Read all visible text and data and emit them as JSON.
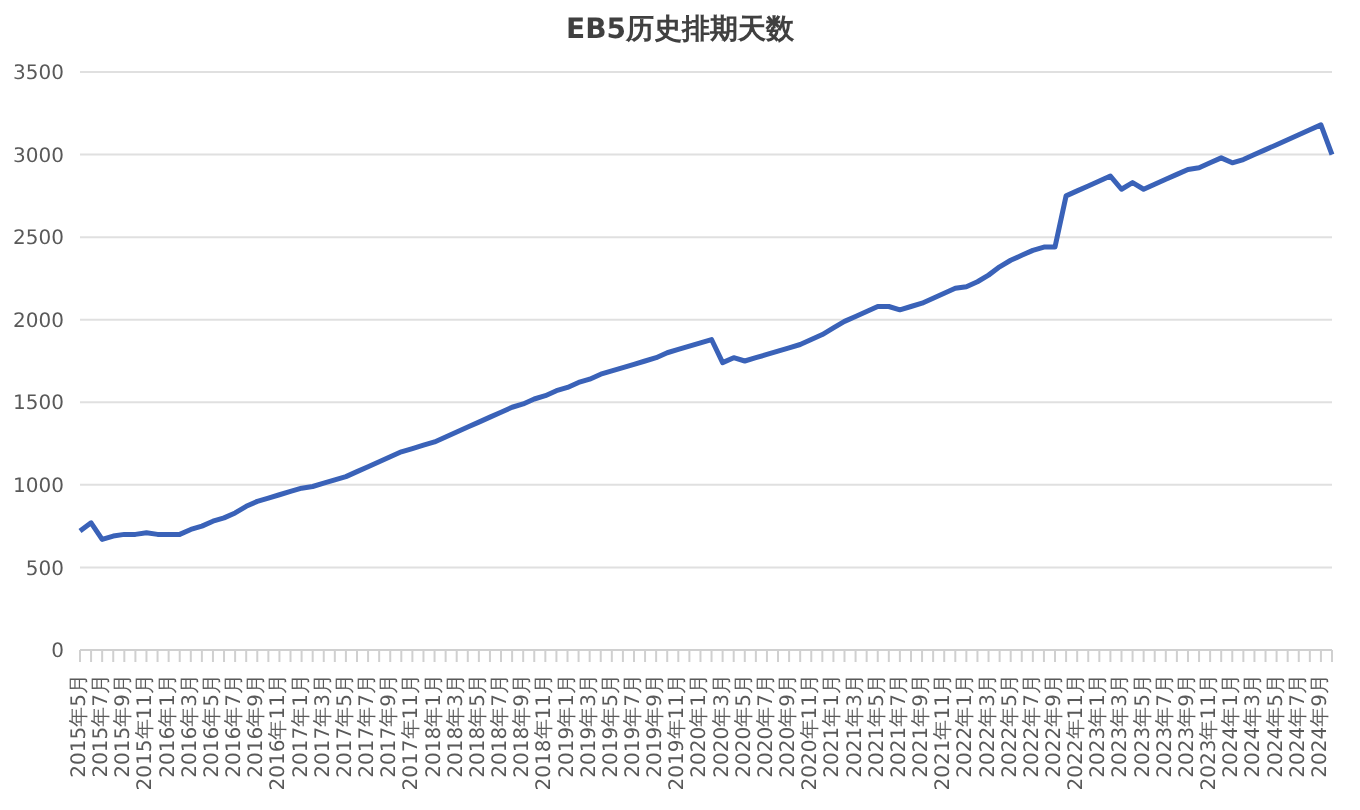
{
  "chart_data": {
    "type": "line",
    "title": "EB5历史排期天数",
    "categories": [
      "2015年5月",
      null,
      "2015年7月",
      null,
      "2015年9月",
      null,
      "2015年11月",
      null,
      "2016年1月",
      null,
      "2016年3月",
      null,
      "2016年5月",
      null,
      "2016年7月",
      null,
      "2016年9月",
      null,
      "2016年11月",
      null,
      "2017年1月",
      null,
      "2017年3月",
      null,
      "2017年5月",
      null,
      "2017年7月",
      null,
      "2017年9月",
      null,
      "2017年11月",
      null,
      "2018年1月",
      null,
      "2018年3月",
      null,
      "2018年5月",
      null,
      "2018年7月",
      null,
      "2018年9月",
      null,
      "2018年11月",
      null,
      "2019年1月",
      null,
      "2019年3月",
      null,
      "2019年5月",
      null,
      "2019年7月",
      null,
      "2019年9月",
      null,
      "2019年11月",
      null,
      "2020年1月",
      null,
      "2020年3月",
      null,
      "2020年5月",
      null,
      "2020年7月",
      null,
      "2020年9月",
      null,
      "2020年11月",
      null,
      "2021年1月",
      null,
      "2021年3月",
      null,
      "2021年5月",
      null,
      "2021年7月",
      null,
      "2021年9月",
      null,
      "2021年11月",
      null,
      "2022年1月",
      null,
      "2022年3月",
      null,
      "2022年5月",
      null,
      "2022年7月",
      null,
      "2022年9月",
      null,
      "2022年11月",
      null,
      "2023年1月",
      null,
      "2023年3月",
      null,
      "2023年5月",
      null,
      "2023年7月",
      null,
      "2023年9月",
      null,
      "2023年11月",
      null,
      "2024年1月",
      null,
      "2024年3月",
      null,
      "2024年5月",
      null,
      "2024年7月",
      null,
      "2024年9月",
      null
    ],
    "series": [
      {
        "color": "#3a62b8",
        "values": [
          720,
          770,
          670,
          690,
          700,
          700,
          710,
          700,
          700,
          700,
          730,
          750,
          780,
          800,
          830,
          870,
          900,
          920,
          940,
          960,
          980,
          990,
          1010,
          1030,
          1050,
          1080,
          1110,
          1140,
          1170,
          1200,
          1220,
          1240,
          1260,
          1290,
          1320,
          1350,
          1380,
          1410,
          1440,
          1470,
          1490,
          1520,
          1540,
          1570,
          1590,
          1620,
          1640,
          1670,
          1690,
          1710,
          1730,
          1750,
          1770,
          1800,
          1820,
          1840,
          1860,
          1880,
          1740,
          1770,
          1750,
          1770,
          1790,
          1810,
          1830,
          1850,
          1880,
          1910,
          1950,
          1990,
          2020,
          2050,
          2080,
          2080,
          2060,
          2080,
          2100,
          2130,
          2160,
          2190,
          2200,
          2230,
          2270,
          2320,
          2360,
          2390,
          2420,
          2440,
          2440,
          2750,
          2780,
          2810,
          2840,
          2870,
          2790,
          2830,
          2790,
          2820,
          2850,
          2880,
          2910,
          2920,
          2950,
          2980,
          2950,
          2970,
          3000,
          3030,
          3060,
          3090,
          3120,
          3150,
          3180,
          3000
        ]
      }
    ],
    "ylim": [
      0,
      3500
    ],
    "yticks": [
      0,
      500,
      1000,
      1500,
      2000,
      2500,
      3000,
      3500
    ],
    "grid": "y",
    "legend": false,
    "marker": "none",
    "line_style": "solid"
  }
}
